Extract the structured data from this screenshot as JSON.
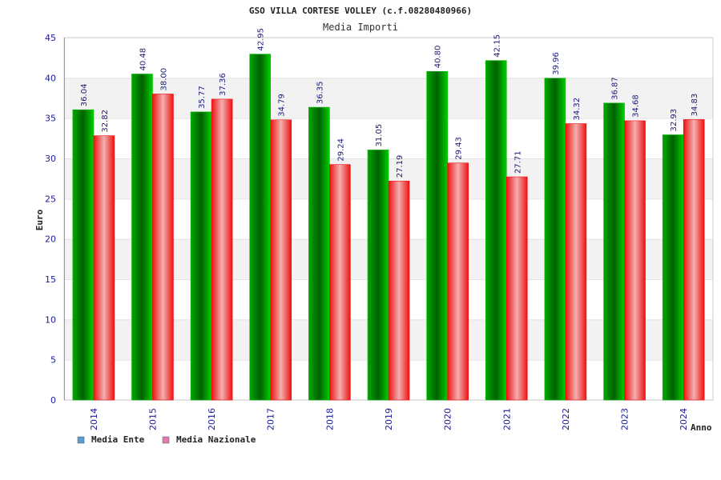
{
  "chart_data": {
    "type": "bar",
    "title": "GSO VILLA CORTESE VOLLEY (c.f.08280480966)",
    "subtitle": "Media Importi",
    "xlabel": "Anno",
    "ylabel": "Euro",
    "ylim": [
      0,
      45
    ],
    "yticks": [
      0,
      5,
      10,
      15,
      20,
      25,
      30,
      35,
      40,
      45
    ],
    "grid": true,
    "legend_position": "bottom-left",
    "categories": [
      "2014",
      "2015",
      "2016",
      "2017",
      "2018",
      "2019",
      "2020",
      "2021",
      "2022",
      "2023",
      "2024"
    ],
    "series": [
      {
        "name": "Media Ente",
        "color": "#00bb00",
        "legend_color": "#5b9bd5",
        "values": [
          36.04,
          40.48,
          35.77,
          42.95,
          36.35,
          31.05,
          40.8,
          42.15,
          39.96,
          36.87,
          32.93
        ],
        "labels": [
          "36.04",
          "40.48",
          "35.77",
          "42.95",
          "36.35",
          "31.05",
          "40.80",
          "42.15",
          "39.96",
          "36.87",
          "32.93"
        ]
      },
      {
        "name": "Media Nazionale",
        "color": "#ee1111",
        "legend_color": "#e07ab0",
        "values": [
          32.82,
          38.0,
          37.36,
          34.79,
          29.24,
          27.19,
          29.43,
          27.71,
          34.32,
          34.68,
          34.83
        ],
        "labels": [
          "32.82",
          "38.00",
          "37.36",
          "34.79",
          "29.24",
          "27.19",
          "29.43",
          "27.71",
          "34.32",
          "34.68",
          "34.83"
        ]
      }
    ]
  }
}
